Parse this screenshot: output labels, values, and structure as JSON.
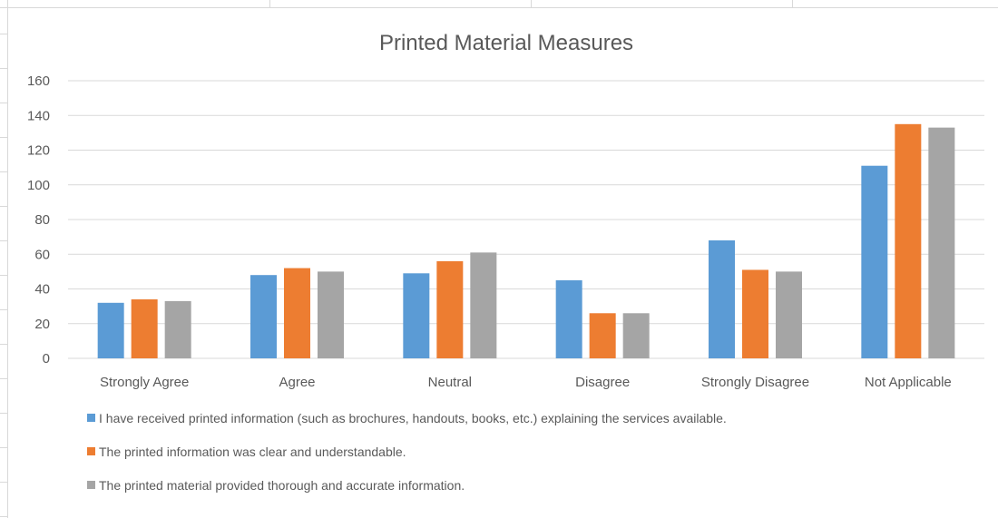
{
  "chart_data": {
    "type": "bar",
    "title": "Printed Material Measures",
    "xlabel": "",
    "ylabel": "",
    "ylim": [
      0,
      160
    ],
    "y_ticks": [
      0,
      20,
      40,
      60,
      80,
      100,
      120,
      140,
      160
    ],
    "grid": true,
    "legend_position": "bottom",
    "categories": [
      "Strongly Agree",
      "Agree",
      "Neutral",
      "Disagree",
      "Strongly Disagree",
      "Not Applicable"
    ],
    "series": [
      {
        "name": "I have received printed information (such as brochures, handouts, books, etc.) explaining the services available.",
        "color": "#5b9bd5",
        "values": [
          32,
          48,
          49,
          45,
          68,
          111
        ]
      },
      {
        "name": "The printed information was clear and understandable.",
        "color": "#ed7d31",
        "values": [
          34,
          52,
          56,
          26,
          51,
          135
        ]
      },
      {
        "name": "The printed material provided thorough and accurate information.",
        "color": "#a5a5a5",
        "values": [
          33,
          50,
          61,
          26,
          50,
          133
        ]
      }
    ],
    "gridline_color": "#d9d9d9",
    "text_color": "#595959"
  }
}
